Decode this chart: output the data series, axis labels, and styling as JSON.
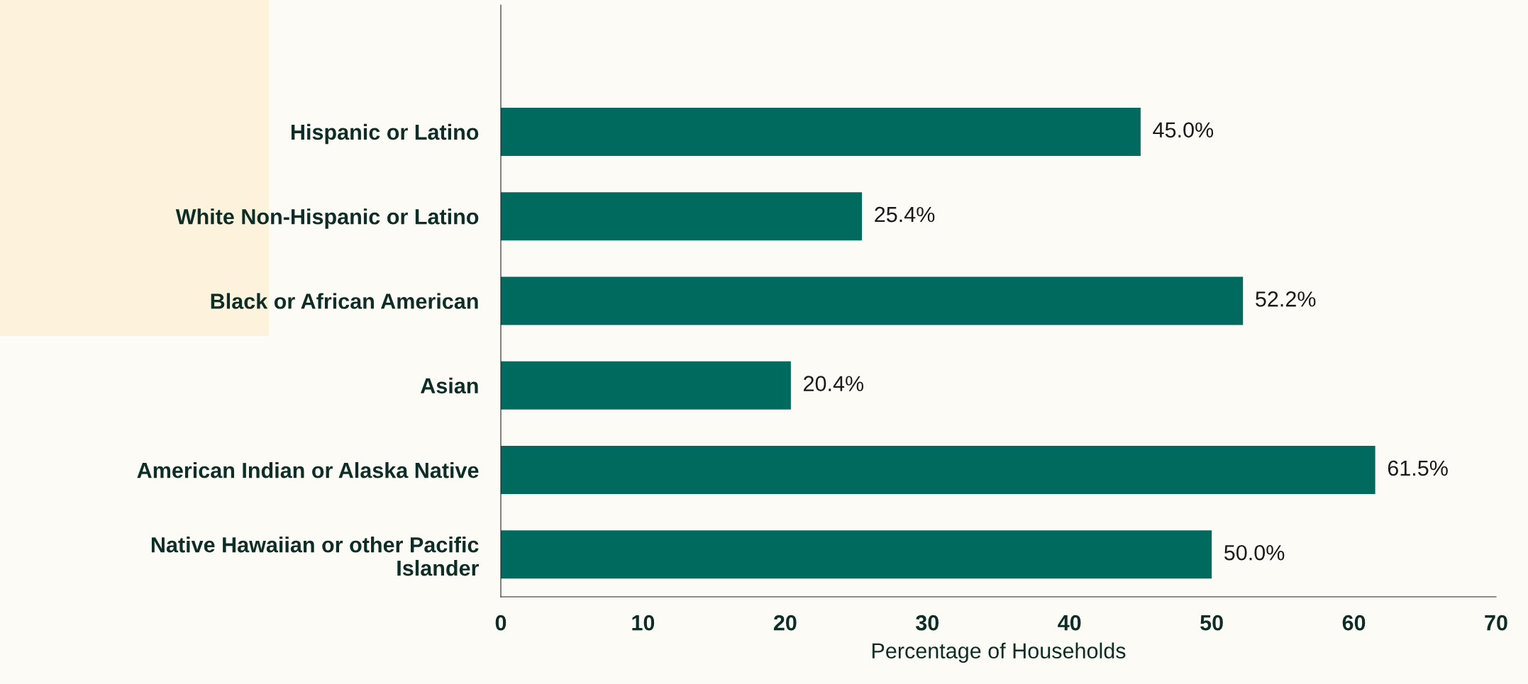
{
  "chart_data": {
    "type": "bar",
    "orientation": "horizontal",
    "categories": [
      "Hispanic or Latino",
      "White Non-Hispanic or Latino",
      "Black or African American",
      "Asian",
      "American Indian or Alaska Native",
      "Native Hawaiian or other Pacific\nIslander"
    ],
    "values": [
      45.0,
      25.4,
      52.2,
      20.4,
      61.5,
      50.0
    ],
    "value_labels": [
      "45.0%",
      "25.4%",
      "52.2%",
      "20.4%",
      "61.5%",
      "50.0%"
    ],
    "color": "#006a5f",
    "xlabel": "Percentage of Households",
    "xlim": [
      0,
      70
    ],
    "xticks": [
      0,
      10,
      20,
      30,
      40,
      50,
      60,
      70
    ],
    "grid": false,
    "legend": false
  }
}
